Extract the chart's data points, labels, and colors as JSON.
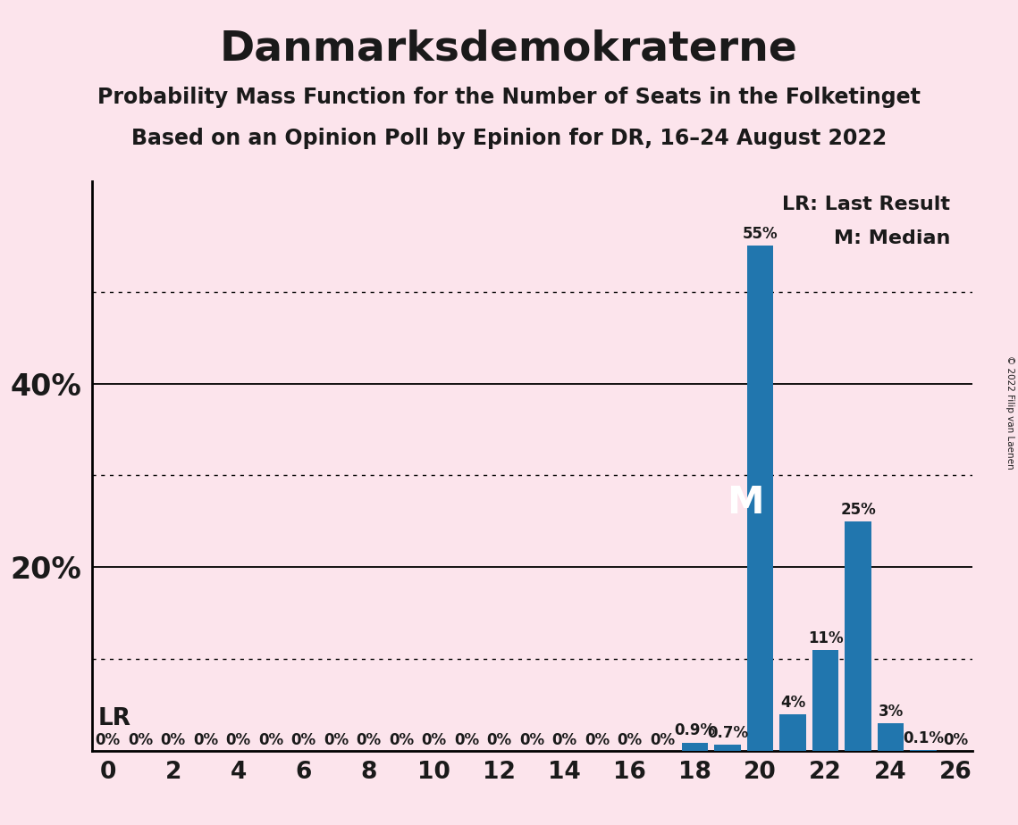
{
  "title": "Danmarksdemokraterne",
  "subtitle1": "Probability Mass Function for the Number of Seats in the Folketinget",
  "subtitle2": "Based on an Opinion Poll by Epinion for DR, 16–24 August 2022",
  "copyright": "© 2022 Filip van Laenen",
  "background_color": "#fce4ec",
  "bar_color": "#2176ae",
  "seats": [
    0,
    1,
    2,
    3,
    4,
    5,
    6,
    7,
    8,
    9,
    10,
    11,
    12,
    13,
    14,
    15,
    16,
    17,
    18,
    19,
    20,
    21,
    22,
    23,
    24,
    25,
    26
  ],
  "values": [
    0,
    0,
    0,
    0,
    0,
    0,
    0,
    0,
    0,
    0,
    0,
    0,
    0,
    0,
    0,
    0,
    0,
    0,
    0.9,
    0.7,
    55,
    4,
    11,
    25,
    3,
    0.1,
    0
  ],
  "xlim": [
    -0.5,
    26.5
  ],
  "ylim": [
    0,
    62
  ],
  "xticks": [
    0,
    2,
    4,
    6,
    8,
    10,
    12,
    14,
    16,
    18,
    20,
    22,
    24,
    26
  ],
  "solid_yticks": [
    20,
    40
  ],
  "dotted_yticks": [
    10,
    30,
    50
  ],
  "median_seat": 20,
  "legend_text1": "LR: Last Result",
  "legend_text2": "M: Median",
  "bar_label_fontsize": 12,
  "title_fontsize": 34,
  "subtitle_fontsize": 17,
  "axis_tick_fontsize": 19,
  "ylabel_fontsize": 24
}
